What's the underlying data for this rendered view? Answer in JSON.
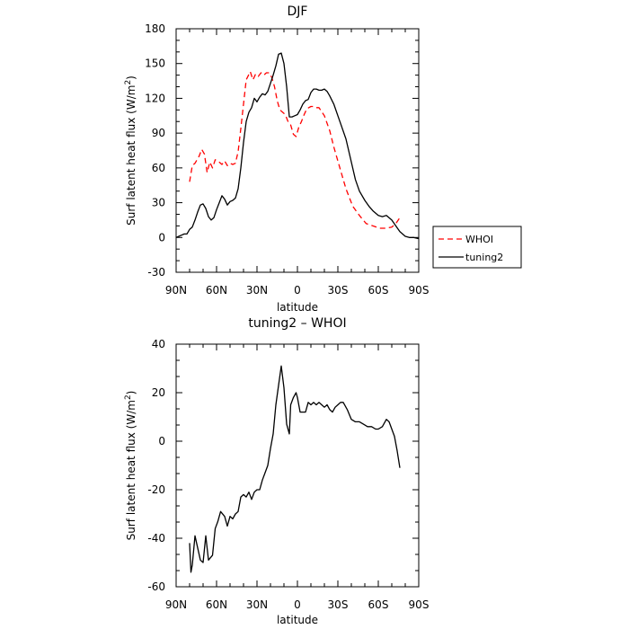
{
  "chart_data": [
    {
      "type": "line",
      "title": "DJF",
      "xlabel": "latitude",
      "ylabel": "Surf latent heat flux (W/m²)",
      "ylabel_main": "Surf latent heat flux (W/m",
      "ylabel_sup": "2",
      "ylabel_tail": ")",
      "xlim": [
        90,
        -90
      ],
      "ylim": [
        -30,
        180
      ],
      "xticks": [
        90,
        60,
        30,
        0,
        -30,
        -60,
        -90
      ],
      "xtick_labels": [
        "90N",
        "60N",
        "30N",
        "0",
        "30S",
        "60S",
        "90S"
      ],
      "yticks": [
        -30,
        0,
        30,
        60,
        90,
        120,
        150,
        180
      ],
      "ytick_labels": [
        "-30",
        "0",
        "30",
        "60",
        "90",
        "120",
        "150",
        "180"
      ],
      "legend_position": "right",
      "series": [
        {
          "name": "WHOI",
          "color": "#ff0000",
          "dash": true,
          "x": [
            80,
            78,
            76,
            73,
            71,
            69,
            67,
            65,
            63,
            61,
            59,
            56,
            54,
            52,
            50,
            48,
            46,
            44,
            42,
            40,
            38,
            35,
            33,
            31,
            29,
            27,
            25,
            23,
            21,
            19,
            17,
            15,
            13,
            11,
            9,
            7,
            5,
            3,
            1,
            -1,
            -3,
            -5,
            -7,
            -10,
            -12,
            -14,
            -16,
            -20,
            -24,
            -27,
            -31,
            -36,
            -41,
            -46,
            -51,
            -56,
            -61,
            -66,
            -70,
            -73,
            -76
          ],
          "y": [
            48,
            62,
            64,
            70,
            76,
            72,
            56,
            65,
            60,
            67,
            66,
            63,
            66,
            62,
            64,
            63,
            64,
            74,
            94,
            115,
            136,
            143,
            136,
            141,
            139,
            142,
            140,
            142,
            142,
            138,
            130,
            118,
            110,
            108,
            106,
            100,
            97,
            89,
            87,
            95,
            100,
            106,
            111,
            113,
            113,
            112,
            112,
            105,
            92,
            78,
            62,
            42,
            27,
            19,
            12,
            10,
            8,
            8,
            9,
            12,
            17
          ]
        },
        {
          "name": "tuning2",
          "color": "#000000",
          "dash": false,
          "x": [
            90,
            88,
            86,
            84,
            82,
            80,
            78,
            76,
            74,
            72,
            70,
            68,
            66,
            64,
            62,
            60,
            58,
            56,
            54,
            52,
            50,
            48,
            46,
            44,
            42,
            40,
            38,
            36,
            34,
            32,
            30,
            28,
            26,
            24,
            22,
            20,
            18,
            16,
            14,
            12,
            10,
            8,
            6,
            4,
            2,
            0,
            -2,
            -4,
            -6,
            -8,
            -10,
            -12,
            -14,
            -16,
            -18,
            -20,
            -22,
            -24,
            -27,
            -30,
            -33,
            -36,
            -40,
            -43,
            -46,
            -50,
            -53,
            -56,
            -60,
            -63,
            -66,
            -70,
            -73,
            -76,
            -80,
            -83,
            -86,
            -90
          ],
          "y": [
            0,
            1,
            2,
            3,
            3,
            7,
            9,
            15,
            22,
            28,
            29,
            25,
            18,
            15,
            17,
            24,
            30,
            36,
            33,
            28,
            31,
            32,
            34,
            42,
            60,
            82,
            100,
            108,
            112,
            120,
            117,
            121,
            124,
            123,
            126,
            133,
            140,
            148,
            158,
            159,
            150,
            130,
            104,
            104,
            105,
            106,
            110,
            115,
            118,
            119,
            125,
            128,
            128,
            127,
            127,
            128,
            126,
            122,
            115,
            105,
            95,
            85,
            65,
            50,
            40,
            32,
            27,
            23,
            19,
            18,
            19,
            15,
            10,
            5,
            1,
            0,
            0,
            -1
          ]
        }
      ]
    },
    {
      "type": "line",
      "title": "tuning2 – WHOI",
      "xlabel": "latitude",
      "ylabel": "Surf latent heat flux (W/m²)",
      "ylabel_main": "Surf latent heat flux (W/m",
      "ylabel_sup": "2",
      "ylabel_tail": ")",
      "xlim": [
        90,
        -90
      ],
      "ylim": [
        -60,
        40
      ],
      "xticks": [
        90,
        60,
        30,
        0,
        -30,
        -60,
        -90
      ],
      "xtick_labels": [
        "90N",
        "60N",
        "30N",
        "0",
        "30S",
        "60S",
        "90S"
      ],
      "yticks": [
        -60,
        -40,
        -20,
        0,
        20,
        40
      ],
      "ytick_labels": [
        "-60",
        "-40",
        "-20",
        "0",
        "20",
        "40"
      ],
      "series": [
        {
          "color": "#000000",
          "dash": false,
          "x": [
            80,
            79,
            78,
            76,
            74,
            72,
            70,
            68,
            66,
            63,
            61,
            59,
            57,
            54,
            52,
            50,
            48,
            46,
            44,
            42,
            40,
            38,
            36,
            34,
            32,
            30,
            28,
            26,
            24,
            22,
            20,
            18,
            16,
            14,
            12,
            10,
            8,
            6,
            5,
            3,
            1,
            0,
            -2,
            -4,
            -6,
            -8,
            -10,
            -12,
            -14,
            -16,
            -18,
            -20,
            -22,
            -24,
            -26,
            -28,
            -30,
            -32,
            -34,
            -37,
            -40,
            -43,
            -46,
            -49,
            -52,
            -55,
            -58,
            -60,
            -63,
            -66,
            -68,
            -70,
            -72,
            -74,
            -76
          ],
          "y": [
            -42,
            -54,
            -51,
            -39,
            -44,
            -49,
            -50,
            -39,
            -49,
            -47,
            -36,
            -33,
            -29,
            -31,
            -35,
            -31,
            -32,
            -30,
            -29,
            -23,
            -22,
            -23,
            -21,
            -24,
            -21,
            -20,
            -20,
            -16,
            -13,
            -10,
            -3,
            3,
            15,
            23,
            31,
            22,
            7,
            3,
            15,
            18,
            20,
            18,
            12,
            12,
            12,
            16,
            15,
            16,
            15,
            16,
            15,
            14,
            15,
            13,
            12,
            14,
            15,
            16,
            16,
            13,
            9,
            8,
            8,
            7,
            6,
            6,
            5,
            5,
            6,
            9,
            8,
            5,
            2,
            -4,
            -11
          ]
        }
      ]
    }
  ]
}
